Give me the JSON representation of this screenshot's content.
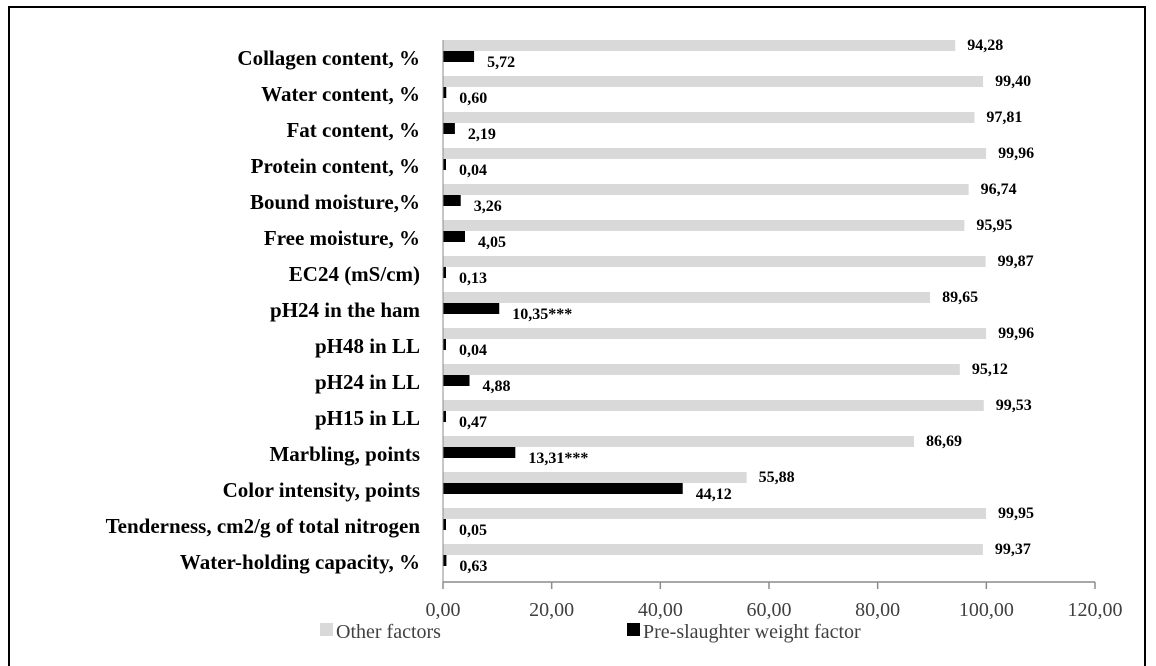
{
  "chart_data": {
    "type": "bar",
    "orientation": "horizontal",
    "title": "",
    "xlabel": "",
    "ylabel": "",
    "xlim": [
      0,
      120
    ],
    "x_ticks": [
      "0,00",
      "20,00",
      "40,00",
      "60,00",
      "80,00",
      "100,00",
      "120,00"
    ],
    "grid": false,
    "legend_position": "bottom",
    "categories": [
      "Collagen content, %",
      "Water content, %",
      "Fat content, %",
      "Protein content, %",
      "Bound moisture,%",
      "Free moisture, %",
      "EC24 (mS/cm)",
      "pH24 in the ham",
      "pH48 in LL",
      "pH24 in LL",
      "pH15 in LL",
      "Marbling,  points",
      "Color intensity, points",
      "Tenderness, cm2/g of total nitrogen",
      "Water-holding capacity, %"
    ],
    "series": [
      {
        "name": "Other factors",
        "color": "#d9d9d9",
        "values": [
          94.28,
          99.4,
          97.81,
          99.96,
          96.74,
          95.95,
          99.87,
          89.65,
          99.96,
          95.12,
          99.53,
          86.69,
          55.88,
          99.95,
          99.37
        ],
        "labels": [
          "94,28",
          "99,40",
          "97,81",
          "99,96",
          "96,74",
          "95,95",
          "99,87",
          "89,65",
          "99,96",
          "95,12",
          "99,53",
          "86,69",
          "55,88",
          "99,95",
          "99,37"
        ]
      },
      {
        "name": "Pre-slaughter weight factor",
        "color": "#000000",
        "values": [
          5.72,
          0.6,
          2.19,
          0.04,
          3.26,
          4.05,
          0.13,
          10.35,
          0.04,
          4.88,
          0.47,
          13.31,
          44.12,
          0.05,
          0.63
        ],
        "labels": [
          "5,72",
          "0,60",
          "2,19",
          "0,04",
          "3,26",
          "4,05",
          "0,13",
          "10,35***",
          "0,04",
          "4,88",
          "0,47",
          "13,31***",
          "44,12",
          "0,05",
          "0,63"
        ]
      }
    ]
  }
}
